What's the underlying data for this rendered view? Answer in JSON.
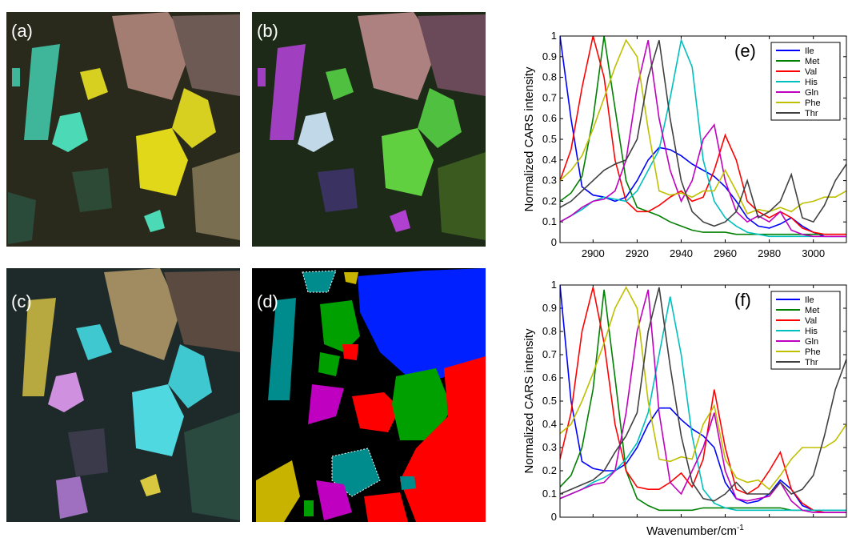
{
  "panels": [
    {
      "label": "(a)"
    },
    {
      "label": "(b)"
    },
    {
      "label": "(c)"
    },
    {
      "label": "(d)"
    }
  ],
  "chart_data": [
    {
      "type": "line",
      "label": "(e)",
      "ylabel": "Normalized CARS intensity",
      "x": [
        2885,
        2890,
        2895,
        2900,
        2905,
        2910,
        2915,
        2920,
        2925,
        2930,
        2935,
        2940,
        2945,
        2950,
        2955,
        2960,
        2965,
        2970,
        2975,
        2980,
        2985,
        2990,
        2995,
        3000,
        3005,
        3010,
        3015
      ],
      "xlim": [
        2885,
        3015
      ],
      "xticks": [
        2900,
        2920,
        2940,
        2960,
        2980,
        3000
      ],
      "show_xtick_labels": true,
      "ylim": [
        0,
        1
      ],
      "yticks": [
        0,
        0.1,
        0.2,
        0.3,
        0.4,
        0.5,
        0.6,
        0.7,
        0.8,
        0.9,
        1
      ],
      "legend": "upper right",
      "series": [
        {
          "name": "Ile",
          "color": "#0000ff",
          "values": [
            1.0,
            0.6,
            0.27,
            0.23,
            0.22,
            0.2,
            0.22,
            0.3,
            0.4,
            0.46,
            0.45,
            0.42,
            0.38,
            0.35,
            0.32,
            0.27,
            0.2,
            0.12,
            0.08,
            0.07,
            0.09,
            0.12,
            0.08,
            0.05,
            0.03,
            0.03,
            0.03
          ]
        },
        {
          "name": "Met",
          "color": "#008000",
          "values": [
            0.2,
            0.24,
            0.32,
            0.6,
            1.0,
            0.65,
            0.3,
            0.17,
            0.15,
            0.13,
            0.1,
            0.08,
            0.06,
            0.05,
            0.05,
            0.05,
            0.04,
            0.04,
            0.04,
            0.04,
            0.04,
            0.04,
            0.04,
            0.04,
            0.04,
            0.04,
            0.04
          ]
        },
        {
          "name": "Val",
          "color": "#ff0000",
          "values": [
            0.3,
            0.45,
            0.75,
            1.0,
            0.8,
            0.4,
            0.2,
            0.15,
            0.15,
            0.18,
            0.22,
            0.25,
            0.2,
            0.22,
            0.35,
            0.52,
            0.4,
            0.2,
            0.15,
            0.12,
            0.15,
            0.12,
            0.07,
            0.05,
            0.04,
            0.04,
            0.04
          ]
        },
        {
          "name": "His",
          "color": "#00bfbf",
          "values": [
            0.1,
            0.13,
            0.16,
            0.2,
            0.22,
            0.21,
            0.2,
            0.25,
            0.35,
            0.45,
            0.7,
            0.98,
            0.85,
            0.4,
            0.2,
            0.12,
            0.08,
            0.05,
            0.04,
            0.03,
            0.03,
            0.03,
            0.03,
            0.03,
            0.03,
            0.03,
            0.03
          ]
        },
        {
          "name": "Gln",
          "color": "#bf00bf",
          "values": [
            0.1,
            0.13,
            0.17,
            0.2,
            0.21,
            0.25,
            0.4,
            0.75,
            0.98,
            0.6,
            0.35,
            0.2,
            0.3,
            0.5,
            0.57,
            0.3,
            0.15,
            0.1,
            0.13,
            0.1,
            0.15,
            0.06,
            0.04,
            0.03,
            0.03,
            0.03,
            0.03
          ]
        },
        {
          "name": "Phe",
          "color": "#bfbf00",
          "values": [
            0.3,
            0.35,
            0.42,
            0.55,
            0.7,
            0.85,
            0.98,
            0.9,
            0.55,
            0.25,
            0.23,
            0.24,
            0.22,
            0.25,
            0.25,
            0.35,
            0.25,
            0.14,
            0.16,
            0.15,
            0.17,
            0.15,
            0.19,
            0.2,
            0.22,
            0.22,
            0.25
          ]
        },
        {
          "name": "Thr",
          "color": "#404040",
          "values": [
            0.17,
            0.2,
            0.25,
            0.3,
            0.35,
            0.38,
            0.4,
            0.5,
            0.8,
            0.98,
            0.6,
            0.3,
            0.15,
            0.1,
            0.08,
            0.1,
            0.15,
            0.3,
            0.12,
            0.15,
            0.2,
            0.33,
            0.12,
            0.1,
            0.18,
            0.3,
            0.38
          ]
        }
      ]
    },
    {
      "type": "line",
      "label": "(f)",
      "ylabel": "Normalized CARS intensity",
      "xlabel": "Wavenumber/cm",
      "xlabel_sup": "-1",
      "x": [
        2885,
        2890,
        2895,
        2900,
        2905,
        2910,
        2915,
        2920,
        2925,
        2930,
        2935,
        2940,
        2945,
        2950,
        2955,
        2960,
        2965,
        2970,
        2975,
        2980,
        2985,
        2990,
        2995,
        3000,
        3005,
        3010,
        3015
      ],
      "xlim": [
        2885,
        3015
      ],
      "xticks": [
        2900,
        2920,
        2940,
        2960,
        2980,
        3000
      ],
      "show_xtick_labels": false,
      "ylim": [
        0,
        1
      ],
      "yticks": [
        0,
        0.1,
        0.2,
        0.3,
        0.4,
        0.5,
        0.6,
        0.7,
        0.8,
        0.9,
        1
      ],
      "legend": "upper right",
      "series": [
        {
          "name": "Ile",
          "color": "#0000ff",
          "values": [
            1.0,
            0.5,
            0.24,
            0.21,
            0.2,
            0.2,
            0.23,
            0.3,
            0.4,
            0.47,
            0.47,
            0.42,
            0.38,
            0.35,
            0.3,
            0.15,
            0.08,
            0.06,
            0.07,
            0.1,
            0.16,
            0.12,
            0.05,
            0.03,
            0.02,
            0.02,
            0.02
          ]
        },
        {
          "name": "Met",
          "color": "#008000",
          "values": [
            0.13,
            0.18,
            0.3,
            0.55,
            0.98,
            0.6,
            0.2,
            0.08,
            0.05,
            0.03,
            0.03,
            0.03,
            0.03,
            0.04,
            0.04,
            0.04,
            0.04,
            0.04,
            0.04,
            0.04,
            0.04,
            0.03,
            0.03,
            0.03,
            0.03,
            0.03,
            0.03
          ]
        },
        {
          "name": "Val",
          "color": "#ff0000",
          "values": [
            0.25,
            0.45,
            0.8,
            0.99,
            0.75,
            0.4,
            0.2,
            0.13,
            0.12,
            0.12,
            0.15,
            0.19,
            0.13,
            0.25,
            0.55,
            0.3,
            0.12,
            0.1,
            0.13,
            0.2,
            0.28,
            0.12,
            0.06,
            0.03,
            0.02,
            0.02,
            0.02
          ]
        },
        {
          "name": "His",
          "color": "#00bfbf",
          "values": [
            0.08,
            0.1,
            0.12,
            0.15,
            0.17,
            0.2,
            0.25,
            0.32,
            0.45,
            0.7,
            0.95,
            0.7,
            0.35,
            0.12,
            0.06,
            0.04,
            0.03,
            0.03,
            0.03,
            0.03,
            0.03,
            0.03,
            0.03,
            0.03,
            0.03,
            0.03,
            0.03
          ]
        },
        {
          "name": "Gln",
          "color": "#bf00bf",
          "values": [
            0.08,
            0.1,
            0.12,
            0.14,
            0.15,
            0.2,
            0.45,
            0.8,
            0.98,
            0.45,
            0.15,
            0.1,
            0.2,
            0.3,
            0.45,
            0.2,
            0.08,
            0.07,
            0.08,
            0.09,
            0.15,
            0.07,
            0.03,
            0.02,
            0.02,
            0.02,
            0.02
          ]
        },
        {
          "name": "Phe",
          "color": "#bfbf00",
          "values": [
            0.36,
            0.4,
            0.5,
            0.62,
            0.75,
            0.9,
            0.99,
            0.9,
            0.5,
            0.25,
            0.24,
            0.26,
            0.25,
            0.4,
            0.48,
            0.25,
            0.17,
            0.15,
            0.16,
            0.12,
            0.18,
            0.25,
            0.3,
            0.3,
            0.3,
            0.33,
            0.4
          ]
        },
        {
          "name": "Thr",
          "color": "#404040",
          "values": [
            0.1,
            0.12,
            0.14,
            0.16,
            0.2,
            0.28,
            0.35,
            0.45,
            0.8,
            0.99,
            0.65,
            0.35,
            0.15,
            0.08,
            0.07,
            0.1,
            0.15,
            0.1,
            0.1,
            0.1,
            0.15,
            0.1,
            0.12,
            0.18,
            0.35,
            0.55,
            0.68
          ]
        }
      ]
    }
  ]
}
